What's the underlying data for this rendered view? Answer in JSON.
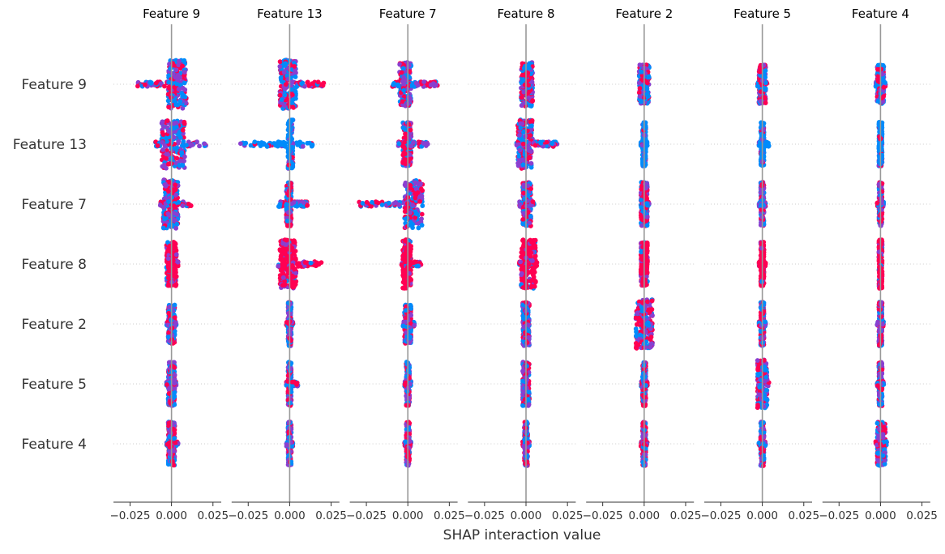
{
  "chart_data": {
    "type": "scatter",
    "subtype": "shap-interaction-summary-beeswarm",
    "features": [
      "Feature 9",
      "Feature 13",
      "Feature 7",
      "Feature 8",
      "Feature 2",
      "Feature 5",
      "Feature 4"
    ],
    "column_titles": [
      "Feature 9",
      "Feature 13",
      "Feature 7",
      "Feature 8",
      "Feature 2",
      "Feature 5",
      "Feature 4"
    ],
    "xlabel": "SHAP interaction value",
    "xlim": [
      -0.035,
      0.03
    ],
    "xticks": [
      -0.025,
      0.0,
      0.025
    ],
    "xtick_labels": [
      "−0.025",
      "0.000",
      "0.025"
    ],
    "grid": "dotted horizontal guide per feature row",
    "legend": "none",
    "color_map": {
      "low": "#008bfb",
      "mid": "#8a3fd0",
      "high": "#ff0052"
    },
    "axis_line_color": "#999999",
    "cells": [
      [
        {
          "min": -0.021,
          "max": 0.009,
          "core_min": -0.002,
          "core_max": 0.009,
          "core_spread": 1.0,
          "color": "mixed"
        },
        {
          "min": -0.006,
          "max": 0.021,
          "core_min": -0.006,
          "core_max": 0.004,
          "core_spread": 1.0,
          "color": "mixed"
        },
        {
          "min": -0.01,
          "max": 0.018,
          "core_min": -0.005,
          "core_max": 0.002,
          "core_spread": 0.9,
          "color": "mixed"
        },
        {
          "min": -0.003,
          "max": 0.004,
          "core_min": -0.003,
          "core_max": 0.004,
          "core_spread": 0.9,
          "color": "mixed"
        },
        {
          "min": -0.003,
          "max": 0.003,
          "core_min": -0.003,
          "core_max": 0.003,
          "core_spread": 0.8,
          "color": "mixed"
        },
        {
          "min": -0.003,
          "max": 0.003,
          "core_min": -0.002,
          "core_max": 0.002,
          "core_spread": 0.8,
          "color": "mixed"
        },
        {
          "min": -0.003,
          "max": 0.003,
          "core_min": -0.002,
          "core_max": 0.002,
          "core_spread": 0.8,
          "color": "mixed"
        }
      ],
      [
        {
          "min": -0.01,
          "max": 0.021,
          "core_min": -0.006,
          "core_max": 0.008,
          "core_spread": 1.0,
          "color": "mixed"
        },
        {
          "min": -0.03,
          "max": 0.014,
          "core_min": -0.001,
          "core_max": 0.002,
          "core_spread": 1.0,
          "color": "blue"
        },
        {
          "min": -0.006,
          "max": 0.012,
          "core_min": -0.003,
          "core_max": 0.002,
          "core_spread": 0.9,
          "color": "mixed"
        },
        {
          "min": -0.006,
          "max": 0.019,
          "core_min": -0.005,
          "core_max": 0.004,
          "core_spread": 1.0,
          "color": "mixed"
        },
        {
          "min": -0.002,
          "max": 0.002,
          "core_min": -0.001,
          "core_max": 0.001,
          "core_spread": 0.9,
          "color": "blue"
        },
        {
          "min": -0.002,
          "max": 0.004,
          "core_min": -0.001,
          "core_max": 0.001,
          "core_spread": 0.9,
          "color": "blue"
        },
        {
          "min": -0.001,
          "max": 0.001,
          "core_min": -0.001,
          "core_max": 0.001,
          "core_spread": 0.9,
          "color": "blue"
        }
      ],
      [
        {
          "min": -0.007,
          "max": 0.012,
          "core_min": -0.005,
          "core_max": 0.004,
          "core_spread": 1.0,
          "color": "mixed"
        },
        {
          "min": -0.007,
          "max": 0.011,
          "core_min": -0.002,
          "core_max": 0.001,
          "core_spread": 0.9,
          "color": "mixed"
        },
        {
          "min": -0.03,
          "max": 0.009,
          "core_min": -0.002,
          "core_max": 0.009,
          "core_spread": 1.0,
          "color": "mixed"
        },
        {
          "min": -0.004,
          "max": 0.005,
          "core_min": -0.002,
          "core_max": 0.003,
          "core_spread": 0.9,
          "color": "mixed"
        },
        {
          "min": -0.002,
          "max": 0.003,
          "core_min": -0.002,
          "core_max": 0.002,
          "core_spread": 0.9,
          "color": "mixed"
        },
        {
          "min": -0.002,
          "max": 0.002,
          "core_min": -0.001,
          "core_max": 0.001,
          "core_spread": 0.9,
          "color": "mixed"
        },
        {
          "min": -0.002,
          "max": 0.002,
          "core_min": -0.001,
          "core_max": 0.001,
          "core_spread": 0.9,
          "color": "mixed"
        }
      ],
      [
        {
          "min": -0.003,
          "max": 0.004,
          "core_min": -0.003,
          "core_max": 0.003,
          "core_spread": 0.9,
          "color": "red"
        },
        {
          "min": -0.007,
          "max": 0.02,
          "core_min": -0.006,
          "core_max": 0.004,
          "core_spread": 1.0,
          "color": "red"
        },
        {
          "min": -0.004,
          "max": 0.008,
          "core_min": -0.003,
          "core_max": 0.002,
          "core_spread": 1.0,
          "color": "red"
        },
        {
          "min": -0.004,
          "max": 0.007,
          "core_min": -0.003,
          "core_max": 0.006,
          "core_spread": 1.0,
          "color": "red"
        },
        {
          "min": -0.002,
          "max": 0.002,
          "core_min": -0.002,
          "core_max": 0.002,
          "core_spread": 0.9,
          "color": "red"
        },
        {
          "min": -0.002,
          "max": 0.002,
          "core_min": -0.001,
          "core_max": 0.001,
          "core_spread": 0.9,
          "color": "red"
        },
        {
          "min": -0.001,
          "max": 0.001,
          "core_min": -0.001,
          "core_max": 0.001,
          "core_spread": 1.0,
          "color": "red"
        }
      ],
      [
        {
          "min": -0.003,
          "max": 0.003,
          "core_min": -0.002,
          "core_max": 0.002,
          "core_spread": 0.8,
          "color": "mixed"
        },
        {
          "min": -0.002,
          "max": 0.002,
          "core_min": -0.001,
          "core_max": 0.001,
          "core_spread": 0.9,
          "color": "mixed"
        },
        {
          "min": -0.003,
          "max": 0.004,
          "core_min": -0.002,
          "core_max": 0.002,
          "core_spread": 0.8,
          "color": "mixed"
        },
        {
          "min": -0.002,
          "max": 0.002,
          "core_min": -0.002,
          "core_max": 0.002,
          "core_spread": 0.9,
          "color": "mixed"
        },
        {
          "min": -0.005,
          "max": 0.005,
          "core_min": -0.005,
          "core_max": 0.005,
          "core_spread": 1.0,
          "color": "mixed"
        },
        {
          "min": -0.002,
          "max": 0.002,
          "core_min": -0.001,
          "core_max": 0.001,
          "core_spread": 0.9,
          "color": "mixed"
        },
        {
          "min": -0.002,
          "max": 0.002,
          "core_min": -0.001,
          "core_max": 0.001,
          "core_spread": 0.9,
          "color": "mixed"
        }
      ],
      [
        {
          "min": -0.003,
          "max": 0.003,
          "core_min": -0.002,
          "core_max": 0.002,
          "core_spread": 0.9,
          "color": "mixed"
        },
        {
          "min": -0.002,
          "max": 0.005,
          "core_min": -0.001,
          "core_max": 0.001,
          "core_spread": 0.9,
          "color": "mixed"
        },
        {
          "min": -0.002,
          "max": 0.002,
          "core_min": -0.001,
          "core_max": 0.001,
          "core_spread": 0.9,
          "color": "mixed"
        },
        {
          "min": -0.002,
          "max": 0.002,
          "core_min": -0.002,
          "core_max": 0.002,
          "core_spread": 0.9,
          "color": "mixed"
        },
        {
          "min": -0.002,
          "max": 0.002,
          "core_min": -0.001,
          "core_max": 0.001,
          "core_spread": 0.9,
          "color": "mixed"
        },
        {
          "min": -0.003,
          "max": 0.004,
          "core_min": -0.003,
          "core_max": 0.003,
          "core_spread": 1.0,
          "color": "mixed"
        },
        {
          "min": -0.002,
          "max": 0.002,
          "core_min": -0.001,
          "core_max": 0.001,
          "core_spread": 0.9,
          "color": "mixed"
        }
      ],
      [
        {
          "min": -0.003,
          "max": 0.004,
          "core_min": -0.002,
          "core_max": 0.002,
          "core_spread": 0.9,
          "color": "mixed"
        },
        {
          "min": -0.002,
          "max": 0.002,
          "core_min": -0.001,
          "core_max": 0.001,
          "core_spread": 0.9,
          "color": "mixed"
        },
        {
          "min": -0.002,
          "max": 0.002,
          "core_min": -0.001,
          "core_max": 0.001,
          "core_spread": 0.9,
          "color": "mixed"
        },
        {
          "min": -0.002,
          "max": 0.002,
          "core_min": -0.001,
          "core_max": 0.001,
          "core_spread": 0.9,
          "color": "mixed"
        },
        {
          "min": -0.002,
          "max": 0.002,
          "core_min": -0.001,
          "core_max": 0.001,
          "core_spread": 0.9,
          "color": "mixed"
        },
        {
          "min": -0.002,
          "max": 0.002,
          "core_min": -0.001,
          "core_max": 0.001,
          "core_spread": 0.9,
          "color": "mixed"
        },
        {
          "min": -0.003,
          "max": 0.004,
          "core_min": -0.002,
          "core_max": 0.003,
          "core_spread": 0.9,
          "color": "mixed"
        }
      ]
    ]
  }
}
